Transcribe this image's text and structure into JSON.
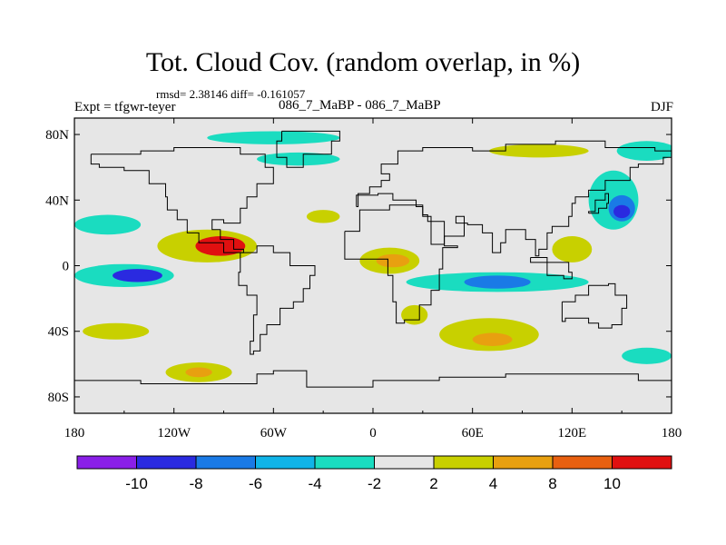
{
  "title": "Tot. Cloud Cov. (random overlap, in %)",
  "stats": "rmsd= 2.38146 diff= -0.161057",
  "experiment_name": "086_7_MaBP - 086_7_MaBP",
  "experiment_label": "Expt = tfgwr-teyer",
  "season": "DJF",
  "colors": {
    "levels": [
      "#8a1fe8",
      "#2a2ae0",
      "#1a7ae6",
      "#10b4e8",
      "#1adcc0",
      "#e6e6e6",
      "#c8d000",
      "#e8a010",
      "#e86010",
      "#e01010"
    ],
    "background": "#e6e6e6",
    "coast": "#000000"
  },
  "chart_data": {
    "type": "heatmap",
    "title": "Tot. Cloud Cov. (random overlap, in %)",
    "variable": "total cloud cover difference (%)",
    "x_ticks": [
      "180",
      "120W",
      "60W",
      "0",
      "60E",
      "120E",
      "180"
    ],
    "x_values": [
      -180,
      -120,
      -60,
      0,
      60,
      120,
      180
    ],
    "y_ticks": [
      "80N",
      "40N",
      "0",
      "40S",
      "80S"
    ],
    "y_values": [
      80,
      40,
      0,
      -40,
      -80
    ],
    "xlim": [
      -180,
      180
    ],
    "ylim": [
      -90,
      90
    ],
    "colorbar_levels": [
      -10,
      -8,
      -6,
      -4,
      -2,
      2,
      4,
      8,
      10
    ],
    "colorbar_labels": [
      "-10",
      "-8",
      "-6",
      "-4",
      "-2",
      "2",
      "4",
      "8",
      "10"
    ],
    "anomalies": [
      {
        "lon": -100,
        "lat": 12,
        "rx": 30,
        "ry": 10,
        "level": 1
      },
      {
        "lon": -92,
        "lat": 12,
        "rx": 15,
        "ry": 6,
        "level": 3
      },
      {
        "lon": -150,
        "lat": -6,
        "rx": 30,
        "ry": 7,
        "level": -1
      },
      {
        "lon": -142,
        "lat": -6,
        "rx": 15,
        "ry": 4,
        "level": -3
      },
      {
        "lon": 10,
        "lat": 3,
        "rx": 18,
        "ry": 8,
        "level": 1
      },
      {
        "lon": 12,
        "lat": 3,
        "rx": 10,
        "ry": 4,
        "level": 2
      },
      {
        "lon": 75,
        "lat": -10,
        "rx": 55,
        "ry": 6,
        "level": -1
      },
      {
        "lon": 75,
        "lat": -10,
        "rx": 20,
        "ry": 4,
        "level": -2
      },
      {
        "lon": 145,
        "lat": 40,
        "rx": 15,
        "ry": 18,
        "level": -1
      },
      {
        "lon": 150,
        "lat": 35,
        "rx": 8,
        "ry": 8,
        "level": -2
      },
      {
        "lon": 150,
        "lat": 33,
        "rx": 5,
        "ry": 4,
        "level": -3
      },
      {
        "lon": 70,
        "lat": -42,
        "rx": 30,
        "ry": 10,
        "level": 1
      },
      {
        "lon": 72,
        "lat": -45,
        "rx": 12,
        "ry": 4,
        "level": 2
      },
      {
        "lon": -105,
        "lat": -65,
        "rx": 20,
        "ry": 6,
        "level": 1
      },
      {
        "lon": -105,
        "lat": -65,
        "rx": 8,
        "ry": 3,
        "level": 2
      },
      {
        "lon": -160,
        "lat": 25,
        "rx": 20,
        "ry": 6,
        "level": -1
      },
      {
        "lon": -45,
        "lat": 65,
        "rx": 25,
        "ry": 4,
        "level": -1
      },
      {
        "lon": 120,
        "lat": 10,
        "rx": 12,
        "ry": 8,
        "level": 1
      },
      {
        "lon": 165,
        "lat": 70,
        "rx": 18,
        "ry": 6,
        "level": -1
      },
      {
        "lon": 165,
        "lat": -55,
        "rx": 15,
        "ry": 5,
        "level": -1
      },
      {
        "lon": 25,
        "lat": -30,
        "rx": 8,
        "ry": 6,
        "level": 1
      },
      {
        "lon": -30,
        "lat": 30,
        "rx": 10,
        "ry": 4,
        "level": 1
      },
      {
        "lon": -155,
        "lat": -40,
        "rx": 20,
        "ry": 5,
        "level": 1
      },
      {
        "lon": -60,
        "lat": 78,
        "rx": 40,
        "ry": 4,
        "level": -1
      },
      {
        "lon": 100,
        "lat": 70,
        "rx": 30,
        "ry": 4,
        "level": 1
      }
    ]
  }
}
